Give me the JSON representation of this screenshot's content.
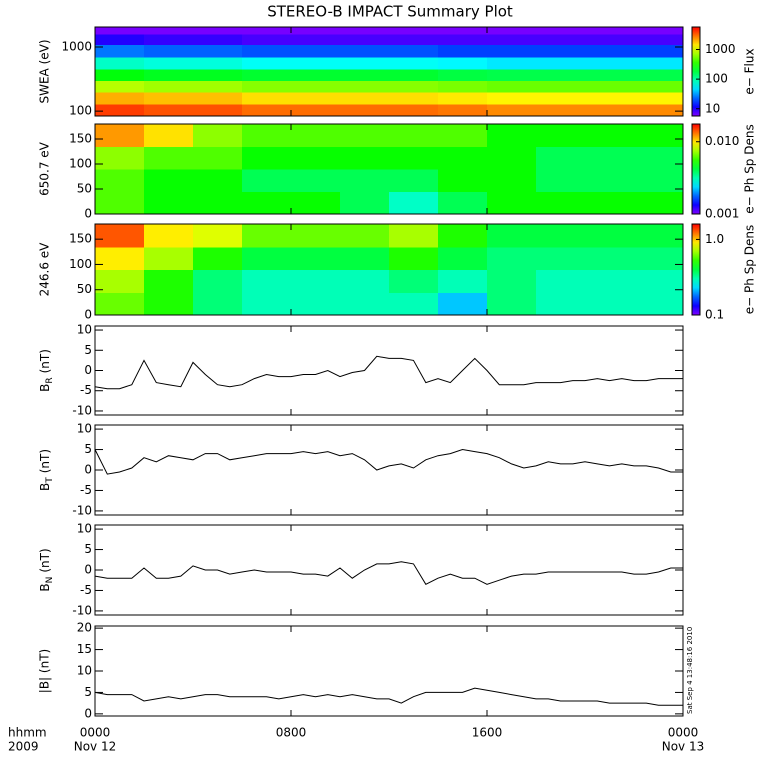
{
  "figure": {
    "title": "STEREO-B IMPACT Summary Plot",
    "x_axis_label_lines": [
      "hhmm",
      "2009"
    ],
    "xlim": [
      0,
      24
    ],
    "xticks": [
      {
        "value": 0,
        "label": "0000"
      },
      {
        "value": 8,
        "label": "0800"
      },
      {
        "value": 16,
        "label": "1600"
      },
      {
        "value": 24,
        "label": "0000"
      }
    ],
    "x_date_labels": [
      {
        "value": 0,
        "label": "Nov 12"
      },
      {
        "value": 24,
        "label": "Nov 13"
      }
    ],
    "timestamp": "Sat Sep  4 13:48:16 2010",
    "x": [
      0,
      0.5,
      1,
      1.5,
      2,
      2.5,
      3,
      3.5,
      4,
      4.5,
      5,
      5.5,
      6,
      6.5,
      7,
      7.5,
      8,
      8.5,
      9,
      9.5,
      10,
      10.5,
      11,
      11.5,
      12,
      12.5,
      13,
      13.5,
      14,
      14.5,
      15,
      15.5,
      16,
      16.5,
      17,
      17.5,
      18,
      18.5,
      19,
      19.5,
      20,
      20.5,
      21,
      21.5,
      22,
      22.5,
      23,
      23.5,
      24
    ],
    "x_edges": [
      0,
      2,
      4,
      6,
      8,
      10,
      12,
      14,
      16,
      18,
      20,
      22,
      24
    ]
  },
  "chart_data": [
    {
      "type": "spectrogram",
      "ylabel": "SWEA (eV)",
      "ylog": true,
      "ylim": [
        84,
        2050
      ],
      "yticks": [
        100,
        1000
      ],
      "y_edges": [
        84,
        130,
        200,
        300,
        450,
        700,
        1100,
        1600,
        2050
      ],
      "z": [
        [
          4000,
          3500,
          3500,
          3000,
          3000,
          3000,
          3000,
          2800,
          2500,
          2500,
          2500,
          2500
        ],
        [
          2000,
          1800,
          1800,
          1500,
          1500,
          1500,
          1500,
          1400,
          1300,
          1300,
          1300,
          1300
        ],
        [
          800,
          700,
          700,
          600,
          600,
          600,
          600,
          550,
          500,
          500,
          500,
          500
        ],
        [
          250,
          220,
          220,
          200,
          200,
          200,
          200,
          180,
          170,
          170,
          170,
          170
        ],
        [
          80,
          70,
          70,
          60,
          60,
          60,
          60,
          55,
          50,
          50,
          50,
          50
        ],
        [
          25,
          22,
          22,
          20,
          20,
          20,
          20,
          18,
          18,
          18,
          18,
          18
        ],
        [
          10,
          9,
          9,
          8,
          8,
          8,
          8,
          8,
          8,
          8,
          8,
          8
        ],
        [
          6,
          6,
          6,
          6,
          6,
          6,
          6,
          6,
          6,
          6,
          6,
          6
        ]
      ],
      "colorbar": {
        "label": "e− Flux",
        "log": true,
        "lim": [
          5.7,
          5740
        ],
        "ticks": [
          10,
          100,
          1000
        ]
      }
    },
    {
      "type": "spectrogram",
      "ylabel": "650.7 eV",
      "ylog": false,
      "ylim": [
        0,
        180
      ],
      "yticks": [
        0,
        50,
        100,
        150
      ],
      "y_edges": [
        0,
        45,
        90,
        135,
        180
      ],
      "z": [
        [
          0.006,
          0.005,
          0.005,
          0.005,
          0.005,
          0.004,
          0.003,
          0.004,
          0.005,
          0.005,
          0.005,
          0.005
        ],
        [
          0.006,
          0.005,
          0.005,
          0.004,
          0.004,
          0.004,
          0.004,
          0.005,
          0.005,
          0.004,
          0.004,
          0.004
        ],
        [
          0.007,
          0.006,
          0.006,
          0.005,
          0.005,
          0.005,
          0.005,
          0.005,
          0.005,
          0.004,
          0.004,
          0.004
        ],
        [
          0.012,
          0.01,
          0.007,
          0.006,
          0.006,
          0.006,
          0.006,
          0.006,
          0.005,
          0.005,
          0.005,
          0.005
        ]
      ],
      "colorbar": {
        "label": "e− Ph Sp Dens",
        "log": true,
        "lim": [
          0.001,
          0.0176
        ],
        "ticks": [
          0.001,
          {
            "value": 0.01,
            "label": "0.010"
          }
        ]
      }
    },
    {
      "type": "spectrogram",
      "ylabel": "246.6 eV",
      "ylog": false,
      "ylim": [
        0,
        180
      ],
      "yticks": [
        0,
        50,
        100,
        150
      ],
      "y_edges": [
        0,
        45,
        90,
        135,
        180
      ],
      "z": [
        [
          0.6,
          0.5,
          0.35,
          0.3,
          0.3,
          0.3,
          0.3,
          0.22,
          0.35,
          0.3,
          0.3,
          0.3
        ],
        [
          0.7,
          0.5,
          0.35,
          0.3,
          0.3,
          0.3,
          0.35,
          0.3,
          0.35,
          0.3,
          0.3,
          0.3
        ],
        [
          0.9,
          0.7,
          0.5,
          0.4,
          0.4,
          0.4,
          0.5,
          0.4,
          0.35,
          0.35,
          0.35,
          0.35
        ],
        [
          1.3,
          0.9,
          0.8,
          0.6,
          0.6,
          0.6,
          0.7,
          0.5,
          0.4,
          0.4,
          0.4,
          0.4
        ]
      ],
      "colorbar": {
        "label": "e− Ph Sp Dens",
        "log": true,
        "lim": [
          0.1,
          1.6
        ],
        "ticks": [
          0.1,
          {
            "value": 1,
            "label": "1.0"
          }
        ]
      }
    },
    {
      "type": "line",
      "ylabel": {
        "text": "B",
        "sub": "R",
        "unit": "(nT)"
      },
      "ylim": [
        -11,
        11
      ],
      "yticks": [
        -10,
        -5,
        0,
        5,
        10
      ],
      "color": "#000000",
      "values": [
        -4,
        -4.5,
        -4.5,
        -3.5,
        2.5,
        -3,
        -3.5,
        -4,
        2,
        -1,
        -3.5,
        -4,
        -3.5,
        -2,
        -1,
        -1.5,
        -1.5,
        -1,
        -1,
        0,
        -1.5,
        -0.5,
        0,
        3.5,
        3,
        3,
        2.5,
        -3,
        -2,
        -3,
        0,
        3,
        0,
        -3.5,
        -3.5,
        -3.5,
        -3,
        -3,
        -3,
        -2.5,
        -2.5,
        -2,
        -2.5,
        -2,
        -2.5,
        -2.5,
        -2,
        -2,
        -2
      ]
    },
    {
      "type": "line",
      "ylabel": {
        "text": "B",
        "sub": "T",
        "unit": "(nT)"
      },
      "ylim": [
        -11,
        11
      ],
      "yticks": [
        -10,
        -5,
        0,
        5,
        10
      ],
      "color": "#000000",
      "values": [
        5,
        -1,
        -0.5,
        0.5,
        3,
        2,
        3.5,
        3,
        2.5,
        4,
        4,
        2.5,
        3,
        3.5,
        4,
        4,
        4,
        4.5,
        4,
        4.5,
        3.5,
        4,
        2.5,
        0,
        1,
        1.5,
        0.5,
        2.5,
        3.5,
        4,
        5,
        4.5,
        4,
        3,
        1.5,
        0.5,
        1,
        2,
        1.5,
        1.5,
        2,
        1.5,
        1,
        1.5,
        1,
        1,
        0.5,
        -0.5,
        -0.5
      ]
    },
    {
      "type": "line",
      "ylabel": {
        "text": "B",
        "sub": "N",
        "unit": "(nT)"
      },
      "ylim": [
        -11,
        11
      ],
      "yticks": [
        -10,
        -5,
        0,
        5,
        10
      ],
      "color": "#000000",
      "values": [
        -1.5,
        -2,
        -2,
        -2,
        0.5,
        -2,
        -2,
        -1.5,
        1,
        0,
        0,
        -1,
        -0.5,
        0,
        -0.5,
        -0.5,
        -0.5,
        -1,
        -1,
        -1.5,
        0.5,
        -2,
        0,
        1.5,
        1.5,
        2,
        1.5,
        -3.5,
        -2,
        -1,
        -2,
        -2,
        -3.5,
        -2.5,
        -1.5,
        -1,
        -1,
        -0.5,
        -0.5,
        -0.5,
        -0.5,
        -0.5,
        -0.5,
        -0.5,
        -1,
        -1,
        -0.5,
        0.5,
        0.5
      ]
    },
    {
      "type": "line",
      "ylabel": "|B| (nT)",
      "ylim": [
        -0.5,
        20.5
      ],
      "yticks": [
        0,
        5,
        10,
        15,
        20
      ],
      "color": "#000000",
      "values": [
        5,
        4.5,
        4.5,
        4.5,
        3,
        3.5,
        4,
        3.5,
        4,
        4.5,
        4.5,
        4,
        4,
        4,
        4,
        3.5,
        4,
        4.5,
        4,
        4.5,
        4,
        4.5,
        4,
        3.5,
        3.5,
        2.5,
        4,
        5,
        5,
        5,
        5,
        6,
        5.5,
        5,
        4.5,
        4,
        3.5,
        3.5,
        3,
        3,
        3,
        3,
        2.5,
        2.5,
        2.5,
        2.5,
        2,
        2,
        2
      ]
    }
  ]
}
